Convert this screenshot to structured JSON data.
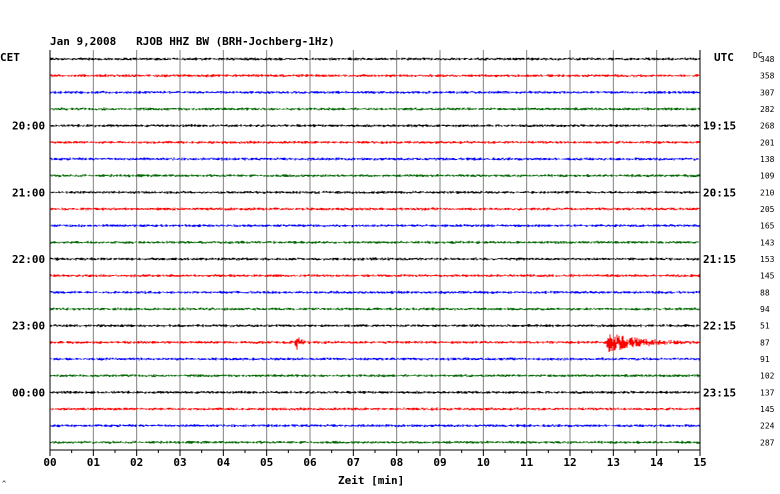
{
  "title": "Jan 9,2008   RJOB HHZ BW (BRH-Jochberg-1Hz)",
  "left_axis_label": "CET",
  "right_axis_label": "UTC",
  "dc_header": "DC",
  "corner_mark": "^",
  "colors": {
    "trace_cycle": [
      "#000000",
      "#ff0000",
      "#0000ff",
      "#006600"
    ],
    "grid": "#808080",
    "frame": "#000000"
  },
  "chart_data": {
    "type": "line",
    "description": "Helicorder / seismogram drum display",
    "xlabel": "Zeit [min]",
    "xlim": [
      0,
      15
    ],
    "x_tick_labels": [
      "00",
      "01",
      "02",
      "03",
      "04",
      "05",
      "06",
      "07",
      "08",
      "09",
      "10",
      "11",
      "12",
      "13",
      "14",
      "15"
    ],
    "rows_per_hour": 4,
    "row_minutes": 15,
    "left_time_labels": [
      {
        "row": 4,
        "label": "20:00"
      },
      {
        "row": 8,
        "label": "21:00"
      },
      {
        "row": 12,
        "label": "22:00"
      },
      {
        "row": 16,
        "label": "23:00"
      },
      {
        "row": 20,
        "label": "00:00"
      }
    ],
    "right_time_labels": [
      {
        "row": 4,
        "label": "19:15"
      },
      {
        "row": 8,
        "label": "20:15"
      },
      {
        "row": 12,
        "label": "21:15"
      },
      {
        "row": 16,
        "label": "22:15"
      },
      {
        "row": 20,
        "label": "23:15"
      }
    ],
    "dc_offsets": [
      348,
      358,
      307,
      282,
      268,
      201,
      138,
      109,
      210,
      205,
      165,
      143,
      153,
      145,
      88,
      94,
      51,
      87,
      91,
      102,
      137,
      145,
      224,
      287
    ],
    "events": [
      {
        "row": 17,
        "minute": 5.7,
        "duration_min": 0.3,
        "amplitude": "medium"
      },
      {
        "row": 17,
        "minute": 12.9,
        "duration_min": 1.9,
        "amplitude": "large"
      }
    ]
  }
}
